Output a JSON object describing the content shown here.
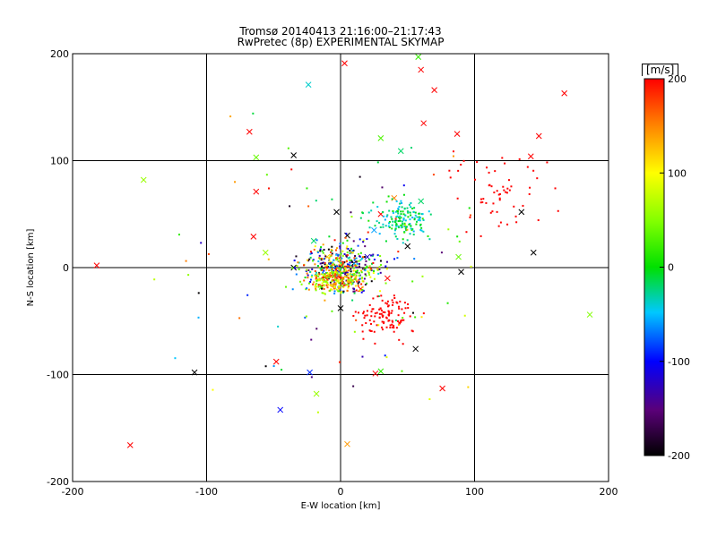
{
  "title": "Tromsø 20140413 21:16:00–21:17:43",
  "subtitle": "RwPretec (8p) EXPERIMENTAL SKYMAP",
  "chart_data": {
    "type": "scatter",
    "title": "Tromsø 20140413 21:16:00–21:17:43",
    "subtitle": "RwPretec (8p) EXPERIMENTAL SKYMAP",
    "xlabel": "E-W location [km]",
    "ylabel": "N-S location [km]",
    "xlim": [
      -200,
      200
    ],
    "ylim": [
      -200,
      200
    ],
    "xticks": [
      -200,
      -100,
      0,
      100,
      200
    ],
    "yticks": [
      -200,
      -100,
      0,
      100,
      200
    ],
    "grid_lines": [
      -100,
      0,
      100
    ],
    "colorbar": {
      "label": "[m/s]",
      "range": [
        -200,
        200
      ],
      "ticks": [
        -200,
        -100,
        0,
        100,
        200
      ],
      "colormap": "black-purple-blue-cyan-green-yellow-orange-red"
    },
    "markers": {
      "cross": "large detections",
      "dot": "small detections"
    },
    "points": [
      {
        "x": 3,
        "y": 191,
        "v": 200,
        "m": "x"
      },
      {
        "x": 58,
        "y": 197,
        "v": 20,
        "m": "x"
      },
      {
        "x": 60,
        "y": 185,
        "v": 200,
        "m": "x"
      },
      {
        "x": -24,
        "y": 171,
        "v": -40,
        "m": "x"
      },
      {
        "x": 70,
        "y": 166,
        "v": 200,
        "m": "x"
      },
      {
        "x": 167,
        "y": 163,
        "v": 200,
        "m": "x"
      },
      {
        "x": 62,
        "y": 135,
        "v": 200,
        "m": "x"
      },
      {
        "x": -68,
        "y": 127,
        "v": 200,
        "m": "x"
      },
      {
        "x": 87,
        "y": 125,
        "v": 200,
        "m": "x"
      },
      {
        "x": 148,
        "y": 123,
        "v": 200,
        "m": "x"
      },
      {
        "x": 30,
        "y": 121,
        "v": 30,
        "m": "x"
      },
      {
        "x": 45,
        "y": 109,
        "v": -20,
        "m": "x"
      },
      {
        "x": -63,
        "y": 103,
        "v": 40,
        "m": "x"
      },
      {
        "x": -35,
        "y": 105,
        "v": -200,
        "m": "x"
      },
      {
        "x": 142,
        "y": 104,
        "v": 200,
        "m": "x"
      },
      {
        "x": -147,
        "y": 82,
        "v": 60,
        "m": "x"
      },
      {
        "x": -63,
        "y": 71,
        "v": 200,
        "m": "x"
      },
      {
        "x": 40,
        "y": 65,
        "v": 150,
        "m": "x"
      },
      {
        "x": 60,
        "y": 62,
        "v": -20,
        "m": "x"
      },
      {
        "x": 135,
        "y": 52,
        "v": -200,
        "m": "x"
      },
      {
        "x": -3,
        "y": 52,
        "v": -200,
        "m": "x"
      },
      {
        "x": -65,
        "y": 29,
        "v": 200,
        "m": "x"
      },
      {
        "x": -56,
        "y": 14,
        "v": 60,
        "m": "x"
      },
      {
        "x": 88,
        "y": 10,
        "v": 40,
        "m": "x"
      },
      {
        "x": 144,
        "y": 14,
        "v": -200,
        "m": "x"
      },
      {
        "x": -182,
        "y": 2,
        "v": 200,
        "m": "x"
      },
      {
        "x": -35,
        "y": 0,
        "v": -200,
        "m": "x"
      },
      {
        "x": 90,
        "y": -4,
        "v": -200,
        "m": "x"
      },
      {
        "x": 186,
        "y": -44,
        "v": 50,
        "m": "x"
      },
      {
        "x": 56,
        "y": -76,
        "v": -200,
        "m": "x"
      },
      {
        "x": -48,
        "y": -88,
        "v": 200,
        "m": "x"
      },
      {
        "x": -109,
        "y": -98,
        "v": -200,
        "m": "x"
      },
      {
        "x": -23,
        "y": -98,
        "v": -90,
        "m": "x"
      },
      {
        "x": 30,
        "y": -97,
        "v": 20,
        "m": "x"
      },
      {
        "x": 26,
        "y": -99,
        "v": 200,
        "m": "x"
      },
      {
        "x": 76,
        "y": -113,
        "v": 200,
        "m": "x"
      },
      {
        "x": -18,
        "y": -118,
        "v": 60,
        "m": "x"
      },
      {
        "x": -45,
        "y": -133,
        "v": -100,
        "m": "x"
      },
      {
        "x": -157,
        "y": -166,
        "v": 200,
        "m": "x"
      },
      {
        "x": 5,
        "y": -165,
        "v": 140,
        "m": "x"
      },
      {
        "x": -14,
        "y": -18,
        "v": 40,
        "m": "x"
      },
      {
        "x": 10,
        "y": 4,
        "v": -200,
        "m": "x"
      },
      {
        "x": 20,
        "y": 10,
        "v": -120,
        "m": "x"
      },
      {
        "x": -2,
        "y": -8,
        "v": 200,
        "m": "x"
      },
      {
        "x": 25,
        "y": 35,
        "v": -60,
        "m": "x"
      },
      {
        "x": 35,
        "y": -10,
        "v": 200,
        "m": "x"
      },
      {
        "x": 5,
        "y": 30,
        "v": -200,
        "m": "x"
      },
      {
        "x": -10,
        "y": 10,
        "v": 120,
        "m": "x"
      },
      {
        "x": 15,
        "y": -20,
        "v": 200,
        "m": "x"
      },
      {
        "x": 50,
        "y": 20,
        "v": -200,
        "m": "x"
      },
      {
        "x": -20,
        "y": 25,
        "v": -20,
        "m": "x"
      },
      {
        "x": 30,
        "y": 50,
        "v": 200,
        "m": "x"
      },
      {
        "x": 0,
        "y": -38,
        "v": -200,
        "m": "x"
      }
    ]
  }
}
